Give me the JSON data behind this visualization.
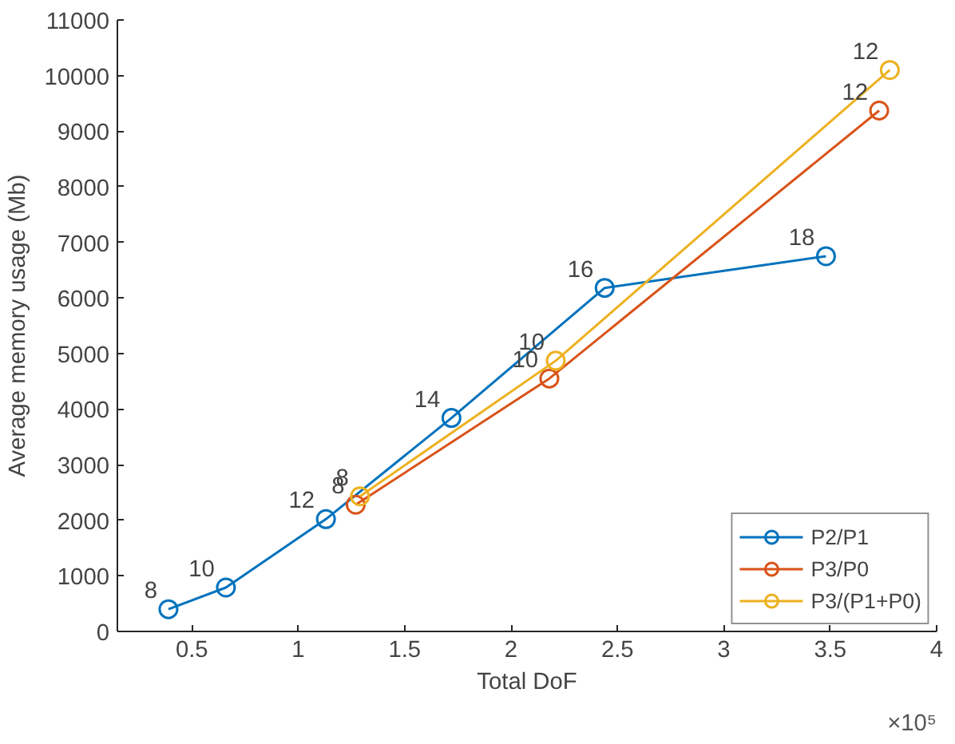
{
  "chart_data": {
    "type": "line",
    "xlabel": "Total DoF",
    "ylabel": "Average memory usage (Mb)",
    "xlim": [
      0.15,
      4
    ],
    "xticks": [
      0.5,
      1,
      1.5,
      2,
      2.5,
      3,
      3.5,
      4
    ],
    "ylim": [
      0,
      11000
    ],
    "yticks": [
      0,
      1000,
      2000,
      3000,
      4000,
      5000,
      6000,
      7000,
      8000,
      9000,
      10000,
      11000
    ],
    "grid": false,
    "legend": "bottom right",
    "marker": "circle",
    "line_style": "solid",
    "series": [
      {
        "name": "P2/P1",
        "color": "#0072bd",
        "x": [
          0.39,
          0.66,
          1.13,
          1.72,
          2.44,
          3.48
        ],
        "values": [
          400,
          790,
          2020,
          3840,
          6180,
          6750
        ]
      },
      {
        "name": "P3/P0",
        "color": "#d95319",
        "x": [
          1.27,
          2.18,
          3.73
        ],
        "values": [
          2280,
          4550,
          9370
        ]
      },
      {
        "name": "P3/(P1+P0)",
        "color": "#edb120",
        "x": [
          1.29,
          2.21,
          3.78
        ],
        "values": [
          2430,
          4870,
          10100
        ]
      }
    ],
    "annotations": [
      {
        "text": "8",
        "x": 0.39,
        "y": 400
      },
      {
        "text": "10",
        "x": 0.66,
        "y": 790
      },
      {
        "text": "12",
        "x": 1.13,
        "y": 2020
      },
      {
        "text": "14",
        "x": 1.72,
        "y": 3840
      },
      {
        "text": "16",
        "x": 2.44,
        "y": 6180
      },
      {
        "text": "18",
        "x": 3.48,
        "y": 6750
      },
      {
        "text": "8",
        "x": 1.27,
        "y": 2280
      },
      {
        "text": "10",
        "x": 2.18,
        "y": 4550
      },
      {
        "text": "12",
        "x": 3.73,
        "y": 9370
      },
      {
        "text": "8",
        "x": 1.29,
        "y": 2430
      },
      {
        "text": "10",
        "x": 2.21,
        "y": 4870
      },
      {
        "text": "12",
        "x": 3.78,
        "y": 10100
      },
      "×10⁵"
    ]
  }
}
